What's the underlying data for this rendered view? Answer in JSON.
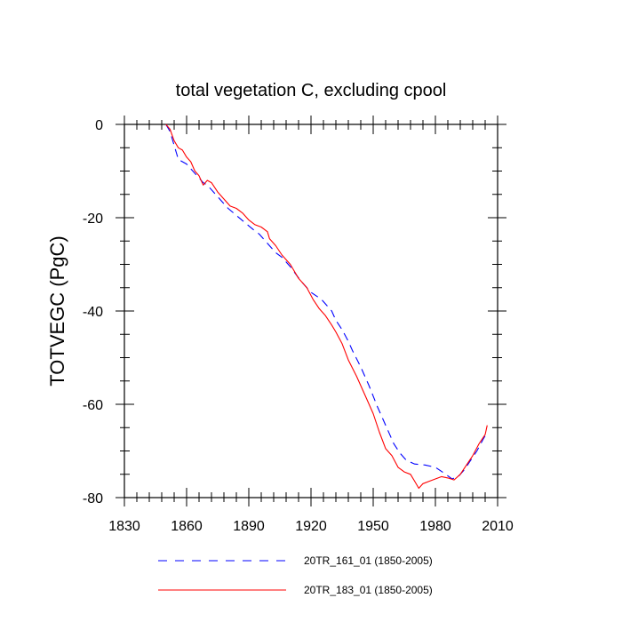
{
  "chart_data": {
    "type": "line",
    "title": "total vegetation C, excluding cpool",
    "xlabel": "",
    "ylabel": "TOTVEGC  (PgC)",
    "xlim": [
      1830,
      2010
    ],
    "ylim": [
      -80,
      0
    ],
    "x_ticks": [
      1830,
      1860,
      1890,
      1920,
      1950,
      1980,
      2010
    ],
    "y_ticks": [
      0,
      -20,
      -40,
      -60,
      -80
    ],
    "x_tick_labels": [
      "1830",
      "1860",
      "1890",
      "1920",
      "1950",
      "1980",
      "2010"
    ],
    "y_tick_labels": [
      "0",
      "-20",
      "-40",
      "-60",
      "-80"
    ],
    "legend_position": "bottom",
    "series": [
      {
        "name": "20TR_161_01 (1850-2005)",
        "color": "#0000ff",
        "style": "dashed",
        "x": [
          1850,
          1852,
          1854,
          1856,
          1858,
          1860,
          1862,
          1865,
          1868,
          1870,
          1873,
          1876,
          1880,
          1884,
          1888,
          1892,
          1895,
          1898,
          1900,
          1903,
          1906,
          1910,
          1915,
          1920,
          1925,
          1930,
          1932,
          1935,
          1938,
          1940,
          1944,
          1948,
          1952,
          1956,
          1960,
          1963,
          1966,
          1970,
          1975,
          1980,
          1985,
          1988,
          1991,
          1994,
          1997,
          2000,
          2003,
          2005
        ],
        "y": [
          0,
          -1.5,
          -4.5,
          -7.5,
          -8.0,
          -8.5,
          -9.5,
          -11.0,
          -12.5,
          -13.0,
          -14.5,
          -16.0,
          -18.0,
          -19.5,
          -21.0,
          -22.5,
          -23.5,
          -25.0,
          -26.0,
          -27.5,
          -28.5,
          -30.5,
          -33.5,
          -36.0,
          -37.5,
          -40.0,
          -42.0,
          -44.0,
          -46.5,
          -48.5,
          -52.0,
          -56.0,
          -60.5,
          -64.5,
          -68.5,
          -70.5,
          -72.0,
          -72.8,
          -73.0,
          -73.5,
          -75.0,
          -76.0,
          -75.5,
          -74.0,
          -72.0,
          -70.0,
          -67.5,
          -66.0
        ]
      },
      {
        "name": "20TR_183_01 (1850-2005)",
        "color": "#ff0000",
        "style": "solid",
        "x": [
          1850,
          1852,
          1854,
          1856,
          1858,
          1860,
          1862,
          1864,
          1866,
          1868,
          1870,
          1872,
          1875,
          1878,
          1881,
          1884,
          1887,
          1890,
          1893,
          1896,
          1899,
          1900,
          1903,
          1906,
          1910,
          1914,
          1918,
          1921,
          1924,
          1927,
          1930,
          1932,
          1935,
          1938,
          1942,
          1946,
          1950,
          1953,
          1956,
          1959,
          1962,
          1965,
          1968,
          1970,
          1972,
          1974,
          1977,
          1980,
          1983,
          1986,
          1989,
          1992,
          1995,
          1998,
          2001,
          2004,
          2005
        ],
        "y": [
          0,
          -1.0,
          -3.5,
          -5.0,
          -5.5,
          -7.0,
          -8.0,
          -10.0,
          -11.0,
          -13.0,
          -12.0,
          -12.5,
          -14.5,
          -16.0,
          -17.5,
          -18.0,
          -19.0,
          -20.5,
          -21.5,
          -22.0,
          -23.0,
          -24.5,
          -26.0,
          -28.0,
          -30.0,
          -33.0,
          -35.0,
          -37.5,
          -39.5,
          -41.0,
          -43.0,
          -44.5,
          -47.0,
          -50.5,
          -54.0,
          -58.0,
          -62.0,
          -66.0,
          -69.5,
          -71.0,
          -73.5,
          -74.5,
          -75.0,
          -76.5,
          -78.0,
          -77.0,
          -76.5,
          -76.0,
          -75.5,
          -75.8,
          -76.2,
          -75.0,
          -73.0,
          -71.0,
          -68.5,
          -66.5,
          -64.5
        ]
      }
    ]
  }
}
